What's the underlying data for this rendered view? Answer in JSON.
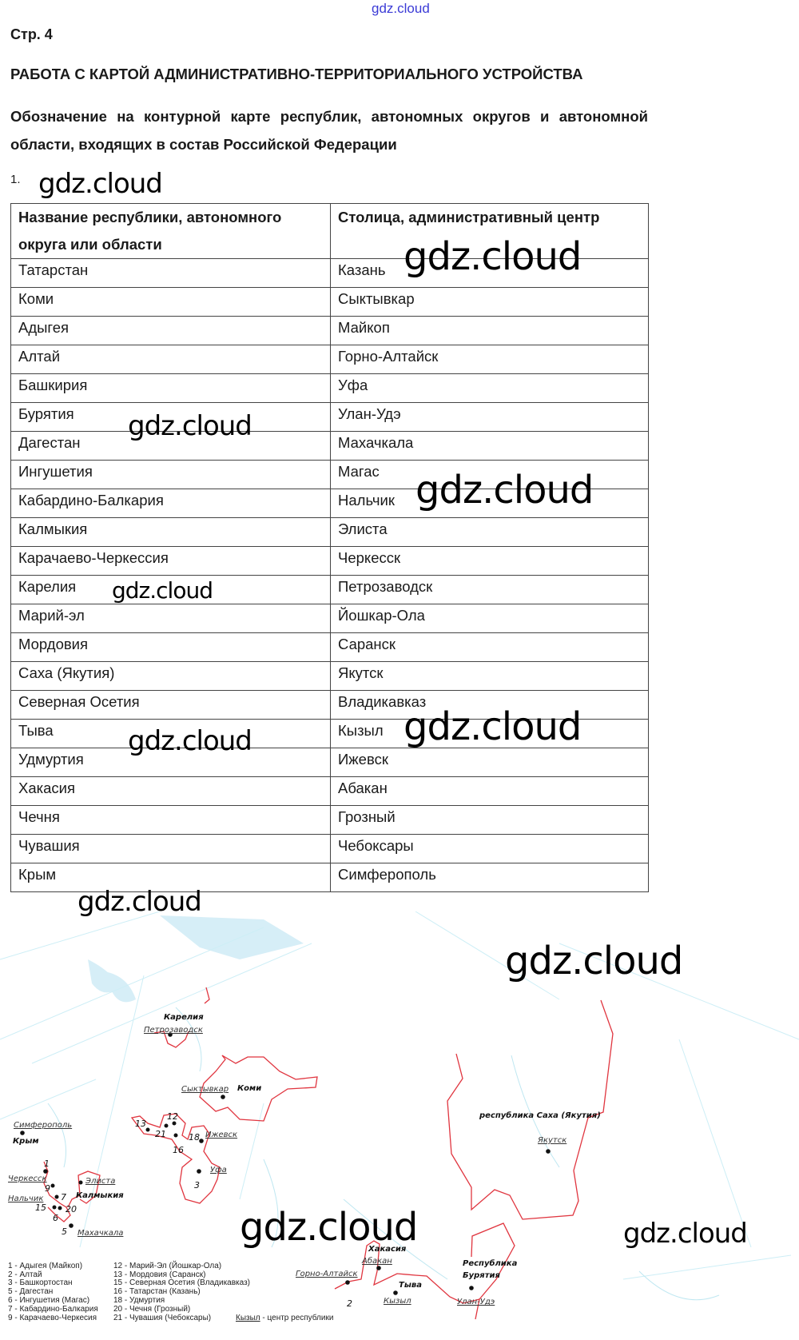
{
  "watermark": "gdz.cloud",
  "page_number": "Стр. 4",
  "heading": "РАБОТА С КАРТОЙ АДМИНИСТРАТИВНО-ТЕРРИТОРИАЛЬНОГО УСТРОЙСТВА",
  "intro": "Обозначение на контурной карте республик, автономных округов и автономной области, входящих в состав Российской Федерации",
  "task_number": "1.",
  "table": {
    "headers": [
      "Название республики, автономного округа или области",
      "Столица, административный центр"
    ],
    "rows": [
      [
        "Татарстан",
        "Казань"
      ],
      [
        "Коми",
        "Сыктывкар"
      ],
      [
        "Адыгея",
        "Майкоп"
      ],
      [
        "Алтай",
        "Горно-Алтайск"
      ],
      [
        "Башкирия",
        "Уфа"
      ],
      [
        "Бурятия",
        "Улан-Удэ"
      ],
      [
        "Дагестан",
        "Махачкала"
      ],
      [
        "Ингушетия",
        "Магас"
      ],
      [
        "Кабардино-Балкария",
        "Нальчик"
      ],
      [
        "Калмыкия",
        "Элиста"
      ],
      [
        "Карачаево-Черкессия",
        "Черкесск"
      ],
      [
        "Карелия",
        "Петрозаводск"
      ],
      [
        "Марий-эл",
        "Йошкар-Ола"
      ],
      [
        "Мордовия",
        "Саранск"
      ],
      [
        "Саха (Якутия)",
        "Якутск"
      ],
      [
        "Северная Осетия",
        "Владикавказ"
      ],
      [
        "Тыва",
        "Кызыл"
      ],
      [
        "Удмуртия",
        "Ижевск"
      ],
      [
        "Хакасия",
        "Абакан"
      ],
      [
        "Чечня",
        "Грозный"
      ],
      [
        "Чувашия",
        "Чебоксары"
      ],
      [
        "Крым",
        "Симферополь"
      ]
    ]
  },
  "map": {
    "border_color": "#e0353f",
    "water_color": "#bfe6f2",
    "regions": {
      "karelia": "Карелия",
      "komi": "Коми",
      "crimea": "Крым",
      "kalmykia": "Калмыкия",
      "sakha": "республика Саха (Якутия)",
      "khakassia": "Хакасия",
      "tyva": "Тыва",
      "buryatia_1": "Республика",
      "buryatia_2": "Бурятия"
    },
    "capitals": {
      "petrozavodsk": "Петрозаводск",
      "syktyvkar": "Сыктывкар",
      "simferopol": "Симферополь",
      "izhevsk": "Ижевск",
      "ufa": "Уфа",
      "cherkessk": "Черкесск",
      "nalchik": "Нальчик",
      "elista": "Элиста",
      "makhachkala": "Махачкала",
      "yakutsk": "Якутск",
      "abakan": "Абакан",
      "gorno_altaysk": "Горно-Алтайск",
      "kyzyl": "Кызыл",
      "ulan_ude": "Улан-Удэ"
    },
    "numbers": [
      "1",
      "2",
      "3",
      "5",
      "6",
      "7",
      "9",
      "12",
      "13",
      "15",
      "16",
      "18",
      "20",
      "21"
    ],
    "legend": [
      "1 - Адыгея  (Майкоп)",
      "2 - Алтай",
      "3 - Башкортостан",
      "5 - Дагестан",
      "6 - Ингушетия (Магас)",
      "7 - Кабардино-Балкария",
      "9 - Карачаево-Черкесия",
      "12 - Марий-Эл (Йошкар-Ола)",
      "13 - Мордовия (Саранск)",
      "15 - Северная Осетия  (Владикавказ)",
      "16 - Татарстан (Казань)",
      "18 - Удмуртия",
      "20 - Чечня  (Грозный)",
      "21 - Чувашия (Чебоксары)"
    ],
    "legend_note_city": "Кызыл",
    "legend_note_text": " - центр республики"
  }
}
